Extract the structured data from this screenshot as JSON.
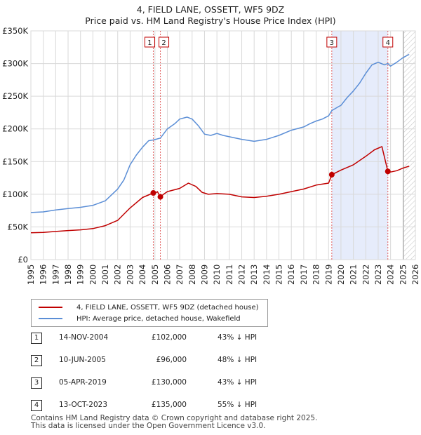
{
  "chart_data": {
    "type": "line",
    "title": "4, FIELD LANE, OSSETT, WF5 9DZ",
    "subtitle": "Price paid vs. HM Land Registry's House Price Index (HPI)",
    "xlim": [
      1995,
      2026
    ],
    "ylim": [
      0,
      350000
    ],
    "x_ticks": [
      "1995",
      "1996",
      "1997",
      "1998",
      "1999",
      "2000",
      "2001",
      "2002",
      "2003",
      "2004",
      "2005",
      "2006",
      "2007",
      "2008",
      "2009",
      "2010",
      "2011",
      "2012",
      "2013",
      "2014",
      "2015",
      "2016",
      "2017",
      "2018",
      "2019",
      "2020",
      "2021",
      "2022",
      "2023",
      "2024",
      "2025",
      "2026"
    ],
    "y_ticks": [
      {
        "value": 0,
        "label": "£0"
      },
      {
        "value": 50000,
        "label": "£50K"
      },
      {
        "value": 100000,
        "label": "£100K"
      },
      {
        "value": 150000,
        "label": "£150K"
      },
      {
        "value": 200000,
        "label": "£200K"
      },
      {
        "value": 250000,
        "label": "£250K"
      },
      {
        "value": 300000,
        "label": "£300K"
      },
      {
        "value": 350000,
        "label": "£350K"
      }
    ],
    "grid": true,
    "shaded_periods": [
      {
        "from": 2019.26,
        "to": 2023.78,
        "color": "#dde6fa"
      }
    ],
    "future_hatch_from": 2025.05,
    "series": [
      {
        "name": "4, FIELD LANE, OSSETT, WF5 9DZ (detached house)",
        "color": "#c00000",
        "x": [
          1995,
          1996,
          1997,
          1998,
          1999,
          2000,
          2001,
          2002,
          2003,
          2004,
          2004.87,
          2005.0,
          2005.2,
          2005.44,
          2005.7,
          2006,
          2007,
          2007.7,
          2008.3,
          2008.8,
          2009.3,
          2010,
          2011,
          2012,
          2013,
          2014,
          2015,
          2016,
          2017,
          2018,
          2019.0,
          2019.26,
          2020,
          2021,
          2022,
          2022.7,
          2023.3,
          2023.78,
          2024.0,
          2024.5,
          2025.0,
          2025.5
        ],
        "values": [
          41000,
          41500,
          43000,
          44500,
          45500,
          47500,
          52000,
          60000,
          79000,
          95000,
          102000,
          101000,
          104000,
          96000,
          100000,
          104000,
          109000,
          117000,
          112000,
          103000,
          100000,
          101000,
          100000,
          96000,
          95000,
          97000,
          100000,
          104000,
          108000,
          114000,
          117000,
          130000,
          137000,
          145000,
          158000,
          168000,
          173000,
          135000,
          134000,
          136000,
          140000,
          143000
        ]
      },
      {
        "name": "HPI: Average price, detached house, Wakefield",
        "color": "#5b8ed6",
        "x": [
          1995,
          1996,
          1997,
          1998,
          1999,
          2000,
          2001,
          2002,
          2002.5,
          2003,
          2003.5,
          2004,
          2004.5,
          2004.87,
          2005.44,
          2006,
          2006.6,
          2007,
          2007.6,
          2008.0,
          2008.5,
          2009,
          2009.5,
          2010,
          2010.5,
          2011,
          2012,
          2013,
          2014,
          2015,
          2016,
          2017,
          2017.5,
          2018,
          2018.5,
          2019,
          2019.26,
          2019.8,
          2020,
          2020.5,
          2021,
          2021.5,
          2022,
          2022.5,
          2023,
          2023.5,
          2023.78,
          2024,
          2024.5,
          2025,
          2025.5
        ],
        "values": [
          72000,
          73000,
          76000,
          78000,
          80000,
          83000,
          90000,
          108000,
          122000,
          145000,
          160000,
          172000,
          182000,
          183000,
          186000,
          200000,
          208000,
          215000,
          218000,
          215000,
          205000,
          192000,
          190000,
          193000,
          190000,
          188000,
          184000,
          181000,
          184000,
          190000,
          198000,
          203000,
          208000,
          212000,
          215000,
          220000,
          228000,
          234000,
          236000,
          248000,
          258000,
          270000,
          285000,
          298000,
          302000,
          298000,
          300000,
          296000,
          302000,
          309000,
          314000
        ]
      }
    ],
    "sales": [
      {
        "label": "1",
        "x": 2004.87,
        "value": 102000
      },
      {
        "label": "2",
        "x": 2005.44,
        "value": 96000
      },
      {
        "label": "3",
        "x": 2019.26,
        "value": 130000
      },
      {
        "label": "4",
        "x": 2023.78,
        "value": 135000
      }
    ]
  },
  "legend": {
    "items": [
      {
        "label": "4, FIELD LANE, OSSETT, WF5 9DZ (detached house)",
        "color": "#c00000"
      },
      {
        "label": "HPI: Average price, detached house, Wakefield",
        "color": "#5b8ed6"
      }
    ]
  },
  "transactions": [
    {
      "marker": "1",
      "date": "14-NOV-2004",
      "price": "£102,000",
      "delta": "43% ↓ HPI"
    },
    {
      "marker": "2",
      "date": "10-JUN-2005",
      "price": "£96,000",
      "delta": "48% ↓ HPI"
    },
    {
      "marker": "3",
      "date": "05-APR-2019",
      "price": "£130,000",
      "delta": "43% ↓ HPI"
    },
    {
      "marker": "4",
      "date": "13-OCT-2023",
      "price": "£135,000",
      "delta": "55% ↓ HPI"
    }
  ],
  "footer": {
    "line1": "Contains HM Land Registry data © Crown copyright and database right 2025.",
    "line2": "This data is licensed under the Open Government Licence v3.0."
  }
}
